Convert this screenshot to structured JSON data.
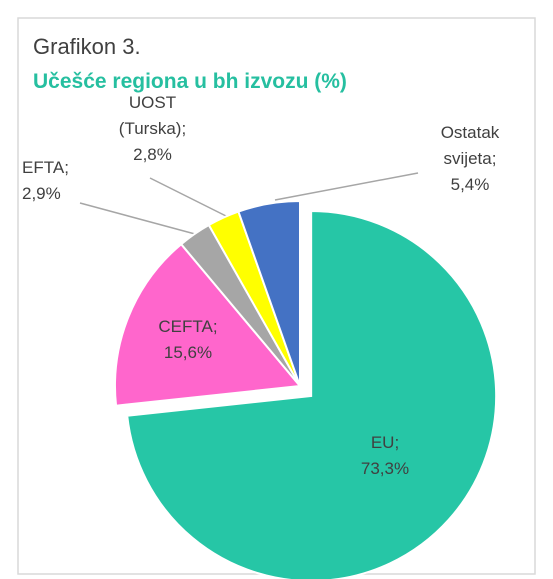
{
  "chart_data": {
    "type": "pie",
    "title": "Grafikon 3.",
    "subtitle": "Učešće regiona u bh izvozu (%)",
    "categories": [
      "EU",
      "CEFTA",
      "EFTA",
      "UOST (Turska)",
      "Ostatak svijeta"
    ],
    "values": [
      73.3,
      15.6,
      2.9,
      2.8,
      5.4
    ],
    "value_labels": [
      "73,3%",
      "15,6%",
      "2,9%",
      "2,8%",
      "5,4%"
    ],
    "label_separator": ";",
    "colors": [
      "#26c6a6",
      "#ff66cc",
      "#a6a6a6",
      "#ffff00",
      "#4472c4"
    ]
  }
}
